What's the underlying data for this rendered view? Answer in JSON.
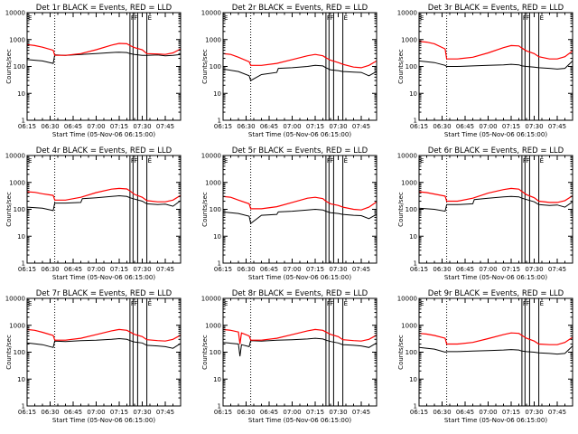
{
  "colors": {
    "events": "#000000",
    "lld": "#ff0000",
    "axis": "#000000",
    "background": "#ffffff"
  },
  "chart_data": {
    "type": "line",
    "ylog": true,
    "ylim": [
      1,
      10000
    ],
    "xlim": [
      "06:15",
      "07:55"
    ],
    "ylabel": "Counts/sec",
    "xlabel": "Start Time (05-Nov-06 06:15:00)",
    "xtick_labels": [
      "06:15",
      "06:30",
      "06:45",
      "07:00",
      "07:15",
      "07:30",
      "07:45"
    ],
    "ytick_labels": [
      "1",
      "10",
      "100",
      "1000",
      "10000"
    ],
    "xtick_minutes": [
      0,
      15,
      30,
      45,
      60,
      75,
      90
    ],
    "ytick_values": [
      1,
      10,
      100,
      1000,
      10000
    ],
    "vertical_line_times": [
      "06:33",
      "07:22",
      "07:24",
      "07:27",
      "07:33"
    ],
    "vertical_line_minutes": [
      18,
      67,
      69,
      72,
      78
    ],
    "annotation_marks": [
      "E",
      "F",
      "F",
      "E"
    ],
    "annotation_mark_minutes": [
      0,
      67,
      69,
      78
    ],
    "panels": [
      {
        "title": "Det 1r BLACK = Events, RED = LLD",
        "series": [
          {
            "name": "Events",
            "color": "#000000",
            "x_minutes": [
              0,
              10,
              17,
              18,
              25,
              35,
              45,
              55,
              60,
              65,
              67,
              70,
              75,
              78,
              85,
              90,
              95,
              100
            ],
            "values": [
              180,
              160,
              130,
              270,
              260,
              280,
              300,
              330,
              340,
              330,
              300,
              280,
              260,
              260,
              270,
              250,
              260,
              280
            ]
          },
          {
            "name": "LLD",
            "color": "#ff0000",
            "x_minutes": [
              0,
              5,
              10,
              17,
              18,
              25,
              35,
              45,
              55,
              60,
              65,
              67,
              70,
              75,
              78,
              85,
              90,
              95,
              100
            ],
            "values": [
              650,
              600,
              520,
              400,
              260,
              260,
              300,
              420,
              620,
              720,
              700,
              600,
              500,
              420,
              300,
              290,
              280,
              320,
              450
            ]
          }
        ]
      },
      {
        "title": "Det 2r BLACK = Events, RED = LLD",
        "series": [
          {
            "name": "Events",
            "color": "#000000",
            "x_minutes": [
              0,
              10,
              17,
              18,
              25,
              35,
              36,
              45,
              55,
              60,
              65,
              67,
              70,
              75,
              78,
              85,
              90,
              95,
              100
            ],
            "values": [
              80,
              65,
              45,
              30,
              50,
              60,
              85,
              90,
              100,
              110,
              105,
              90,
              75,
              70,
              65,
              62,
              60,
              45,
              65
            ]
          },
          {
            "name": "LLD",
            "color": "#ff0000",
            "x_minutes": [
              0,
              5,
              10,
              17,
              18,
              25,
              35,
              45,
              55,
              60,
              65,
              67,
              70,
              75,
              78,
              85,
              90,
              95,
              100
            ],
            "values": [
              300,
              280,
              220,
              150,
              110,
              110,
              130,
              180,
              250,
              280,
              250,
              210,
              170,
              140,
              120,
              95,
              90,
              110,
              160
            ]
          }
        ]
      },
      {
        "title": "Det 3r BLACK = Events, RED = LLD",
        "series": [
          {
            "name": "Events",
            "color": "#000000",
            "x_minutes": [
              0,
              10,
              17,
              18,
              25,
              35,
              45,
              55,
              60,
              65,
              67,
              70,
              75,
              78,
              85,
              90,
              95,
              100
            ],
            "values": [
              160,
              140,
              110,
              100,
              100,
              105,
              110,
              115,
              120,
              115,
              105,
              100,
              95,
              90,
              85,
              80,
              85,
              160
            ]
          },
          {
            "name": "LLD",
            "color": "#ff0000",
            "x_minutes": [
              0,
              5,
              10,
              17,
              18,
              25,
              35,
              45,
              55,
              60,
              65,
              67,
              70,
              75,
              78,
              85,
              90,
              95,
              100
            ],
            "values": [
              850,
              800,
              700,
              450,
              190,
              190,
              220,
              320,
              500,
              600,
              580,
              480,
              380,
              300,
              230,
              190,
              190,
              230,
              380
            ]
          }
        ]
      },
      {
        "title": "Det 4r BLACK = Events, RED = LLD",
        "series": [
          {
            "name": "Events",
            "color": "#000000",
            "x_minutes": [
              0,
              10,
              17,
              18,
              25,
              35,
              36,
              45,
              55,
              60,
              65,
              67,
              70,
              75,
              78,
              85,
              90,
              95,
              100
            ],
            "values": [
              120,
              110,
              90,
              170,
              170,
              180,
              250,
              270,
              300,
              320,
              300,
              270,
              240,
              200,
              160,
              150,
              155,
              130,
              210
            ]
          },
          {
            "name": "LLD",
            "color": "#ff0000",
            "x_minutes": [
              0,
              5,
              10,
              17,
              18,
              25,
              35,
              45,
              55,
              60,
              65,
              67,
              70,
              75,
              78,
              85,
              90,
              95,
              100
            ],
            "values": [
              450,
              430,
              380,
              330,
              220,
              220,
              280,
              420,
              560,
              600,
              570,
              480,
              360,
              280,
              210,
              190,
              190,
              220,
              330
            ]
          }
        ]
      },
      {
        "title": "Det 5r BLACK = Events, RED = LLD",
        "series": [
          {
            "name": "Events",
            "color": "#000000",
            "x_minutes": [
              0,
              10,
              17,
              18,
              25,
              35,
              36,
              45,
              55,
              60,
              65,
              67,
              70,
              75,
              78,
              85,
              90,
              95,
              100
            ],
            "values": [
              80,
              70,
              55,
              30,
              60,
              65,
              80,
              85,
              95,
              100,
              95,
              85,
              75,
              70,
              65,
              60,
              58,
              45,
              65
            ]
          },
          {
            "name": "LLD",
            "color": "#ff0000",
            "x_minutes": [
              0,
              5,
              10,
              17,
              18,
              25,
              35,
              45,
              55,
              60,
              65,
              67,
              70,
              75,
              78,
              85,
              90,
              95,
              100
            ],
            "values": [
              300,
              280,
              220,
              160,
              105,
              105,
              125,
              180,
              260,
              280,
              250,
              200,
              160,
              140,
              120,
              100,
              95,
              120,
              190
            ]
          }
        ]
      },
      {
        "title": "Det 6r BLACK = Events, RED = LLD",
        "series": [
          {
            "name": "Events",
            "color": "#000000",
            "x_minutes": [
              0,
              10,
              17,
              18,
              25,
              35,
              36,
              45,
              55,
              60,
              65,
              67,
              70,
              75,
              78,
              85,
              90,
              95,
              100
            ],
            "values": [
              110,
              100,
              85,
              150,
              150,
              160,
              230,
              260,
              290,
              300,
              290,
              260,
              230,
              190,
              150,
              140,
              145,
              120,
              190
            ]
          },
          {
            "name": "LLD",
            "color": "#ff0000",
            "x_minutes": [
              0,
              5,
              10,
              17,
              18,
              25,
              35,
              45,
              55,
              60,
              65,
              67,
              70,
              75,
              78,
              85,
              90,
              95,
              100
            ],
            "values": [
              450,
              420,
              370,
              310,
              200,
              200,
              260,
              400,
              540,
              600,
              560,
              460,
              350,
              270,
              200,
              180,
              180,
              210,
              320
            ]
          }
        ]
      },
      {
        "title": "Det 7r BLACK = Events, RED = LLD",
        "series": [
          {
            "name": "Events",
            "color": "#000000",
            "x_minutes": [
              0,
              10,
              17,
              18,
              25,
              35,
              45,
              55,
              60,
              65,
              67,
              70,
              75,
              78,
              85,
              90,
              95,
              100
            ],
            "values": [
              220,
              190,
              150,
              260,
              250,
              270,
              280,
              300,
              320,
              300,
              270,
              240,
              220,
              180,
              170,
              160,
              140,
              210
            ]
          },
          {
            "name": "LLD",
            "color": "#ff0000",
            "x_minutes": [
              0,
              5,
              10,
              17,
              18,
              25,
              35,
              45,
              55,
              60,
              65,
              67,
              70,
              75,
              78,
              85,
              90,
              95,
              100
            ],
            "values": [
              700,
              650,
              550,
              420,
              280,
              280,
              330,
              450,
              620,
              700,
              650,
              560,
              460,
              380,
              290,
              270,
              260,
              300,
              430
            ]
          }
        ]
      },
      {
        "title": "Det 8r BLACK = Events, RED = LLD",
        "series": [
          {
            "name": "Events",
            "color": "#000000",
            "x_minutes": [
              0,
              10,
              11,
              12,
              17,
              18,
              25,
              35,
              45,
              55,
              60,
              65,
              67,
              70,
              75,
              78,
              85,
              90,
              95,
              100
            ],
            "values": [
              230,
              200,
              70,
              190,
              160,
              270,
              260,
              280,
              290,
              310,
              330,
              310,
              280,
              250,
              220,
              190,
              180,
              170,
              150,
              220
            ]
          },
          {
            "name": "LLD",
            "color": "#ff0000",
            "x_minutes": [
              0,
              5,
              10,
              11,
              12,
              17,
              18,
              25,
              35,
              45,
              55,
              60,
              65,
              67,
              70,
              75,
              78,
              85,
              90,
              95,
              100
            ],
            "values": [
              700,
              650,
              560,
              200,
              520,
              400,
              280,
              280,
              330,
              450,
              620,
              700,
              650,
              560,
              460,
              380,
              290,
              270,
              260,
              300,
              430
            ]
          }
        ]
      },
      {
        "title": "Det 9r BLACK = Events, RED = LLD",
        "series": [
          {
            "name": "Events",
            "color": "#000000",
            "x_minutes": [
              0,
              10,
              17,
              18,
              25,
              35,
              45,
              55,
              60,
              65,
              67,
              70,
              75,
              78,
              85,
              90,
              95,
              100
            ],
            "values": [
              150,
              130,
              100,
              105,
              105,
              110,
              115,
              120,
              125,
              120,
              110,
              105,
              100,
              95,
              90,
              85,
              90,
              170
            ]
          },
          {
            "name": "LLD",
            "color": "#ff0000",
            "x_minutes": [
              0,
              5,
              10,
              17,
              18,
              25,
              35,
              45,
              55,
              60,
              65,
              67,
              70,
              75,
              78,
              85,
              90,
              95,
              100
            ],
            "values": [
              500,
              470,
              420,
              330,
              200,
              200,
              230,
              320,
              450,
              520,
              500,
              420,
              330,
              260,
              200,
              190,
              190,
              230,
              360
            ]
          }
        ]
      }
    ]
  }
}
